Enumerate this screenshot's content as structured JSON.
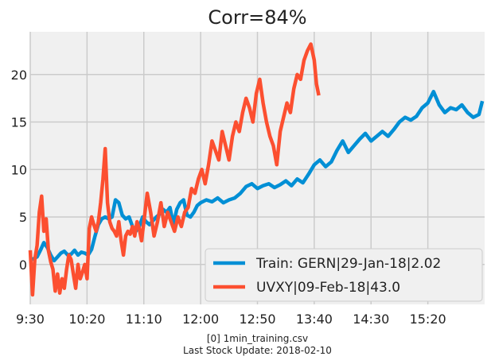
{
  "chart_data": {
    "type": "line",
    "title": "Corr=84%",
    "xlabel": "",
    "ylabel": "",
    "x_tick_labels": [
      "9:30",
      "10:20",
      "11:10",
      "12:00",
      "12:50",
      "13:40",
      "14:30",
      "15:20"
    ],
    "x_tick_minutes": [
      0,
      50,
      100,
      150,
      200,
      250,
      300,
      350
    ],
    "xlim": [
      0,
      400
    ],
    "y_ticks": [
      0,
      5,
      10,
      15,
      20
    ],
    "y_tick_labels": [
      "0",
      "5",
      "10",
      "15",
      "20"
    ],
    "ylim": [
      -4.2,
      24.5
    ],
    "grid": true,
    "legend_position": "lower-right",
    "footer": [
      "[0] 1min_training.csv",
      "Last Stock Update: 2018-02-10"
    ],
    "series": [
      {
        "name": "Train: GERN|29-Jan-18|2.02",
        "color": "#008fd5",
        "x": [
          0,
          3,
          6,
          9,
          12,
          15,
          18,
          21,
          24,
          27,
          30,
          33,
          36,
          39,
          42,
          45,
          48,
          51,
          54,
          57,
          60,
          63,
          66,
          69,
          72,
          75,
          78,
          81,
          84,
          87,
          90,
          93,
          96,
          99,
          102,
          105,
          108,
          111,
          114,
          117,
          120,
          123,
          126,
          129,
          132,
          135,
          138,
          141,
          144,
          147,
          150,
          155,
          160,
          165,
          170,
          175,
          180,
          185,
          190,
          195,
          200,
          205,
          210,
          215,
          220,
          225,
          230,
          235,
          240,
          245,
          250,
          255,
          260,
          265,
          270,
          275,
          280,
          285,
          290,
          295,
          300,
          305,
          310,
          315,
          320,
          325,
          330,
          335,
          340,
          345,
          350,
          355,
          360,
          365,
          370,
          375,
          380,
          385,
          390,
          395,
          398
        ],
        "y": [
          0.5,
          0.6,
          0.8,
          1.5,
          2.3,
          1.8,
          1.0,
          0.4,
          0.8,
          1.2,
          1.4,
          1.0,
          1.1,
          1.5,
          1.0,
          1.3,
          1.2,
          1.0,
          1.6,
          3.0,
          4.2,
          4.8,
          5.0,
          4.8,
          5.0,
          6.8,
          6.5,
          5.2,
          4.8,
          5.0,
          4.0,
          3.5,
          4.0,
          5.0,
          4.5,
          4.2,
          4.6,
          5.0,
          5.3,
          5.8,
          5.5,
          6.0,
          4.2,
          5.8,
          6.5,
          6.8,
          5.2,
          5.0,
          5.5,
          6.2,
          6.5,
          6.8,
          6.6,
          7.0,
          6.5,
          6.8,
          7.0,
          7.5,
          8.2,
          8.5,
          8.0,
          8.3,
          8.5,
          8.1,
          8.4,
          8.8,
          8.3,
          9.0,
          8.6,
          9.5,
          10.5,
          11.0,
          10.3,
          10.8,
          12.0,
          13.0,
          11.8,
          12.5,
          13.2,
          13.8,
          13.0,
          13.5,
          14.0,
          13.5,
          14.2,
          15.0,
          15.5,
          15.2,
          15.6,
          16.5,
          17.0,
          18.2,
          16.8,
          16.0,
          16.5,
          16.3,
          16.8,
          16.0,
          15.5,
          15.8,
          17.2
        ]
      },
      {
        "name": "UVXY|09-Feb-18|43.0",
        "color": "#fc4f30",
        "x": [
          0,
          2,
          4,
          6,
          8,
          10,
          12,
          14,
          16,
          18,
          20,
          22,
          24,
          26,
          28,
          30,
          32,
          34,
          36,
          38,
          40,
          42,
          44,
          46,
          48,
          50,
          52,
          54,
          56,
          58,
          60,
          62,
          64,
          66,
          68,
          70,
          72,
          74,
          76,
          78,
          80,
          82,
          84,
          86,
          88,
          90,
          92,
          94,
          96,
          98,
          100,
          103,
          106,
          109,
          112,
          115,
          118,
          121,
          124,
          127,
          130,
          133,
          136,
          139,
          142,
          145,
          148,
          151,
          154,
          157,
          160,
          163,
          166,
          169,
          172,
          175,
          178,
          181,
          184,
          187,
          190,
          193,
          196,
          199,
          202,
          205,
          208,
          211,
          214,
          217,
          220,
          223,
          226,
          229,
          232,
          235,
          238,
          241,
          244,
          247,
          250,
          252,
          254
        ],
        "y": [
          1.5,
          -3.2,
          0.5,
          2.0,
          5.5,
          7.2,
          3.5,
          4.8,
          1.5,
          0.3,
          -0.5,
          -2.8,
          -1.0,
          -3.0,
          -1.5,
          -2.5,
          -0.5,
          1.0,
          0.5,
          -1.0,
          -2.5,
          0.0,
          -1.5,
          -0.8,
          0.0,
          -1.5,
          3.8,
          5.0,
          4.2,
          3.5,
          4.5,
          6.5,
          9.0,
          12.2,
          6.5,
          4.5,
          3.8,
          3.5,
          3.0,
          4.5,
          2.5,
          1.0,
          3.0,
          3.5,
          3.2,
          4.0,
          3.0,
          4.5,
          3.8,
          2.5,
          4.5,
          7.5,
          5.5,
          3.0,
          4.5,
          6.5,
          4.0,
          5.5,
          4.5,
          3.5,
          5.0,
          4.0,
          5.5,
          6.0,
          8.0,
          7.5,
          9.0,
          10.0,
          8.5,
          10.5,
          13.0,
          12.0,
          11.0,
          14.0,
          12.5,
          11.0,
          13.5,
          15.0,
          14.0,
          16.0,
          17.5,
          16.5,
          15.0,
          18.0,
          19.5,
          17.0,
          15.0,
          13.5,
          12.5,
          10.5,
          14.0,
          15.5,
          17.0,
          16.0,
          18.5,
          20.0,
          19.5,
          21.5,
          22.5,
          23.2,
          21.5,
          19.0,
          17.8
        ]
      }
    ]
  }
}
